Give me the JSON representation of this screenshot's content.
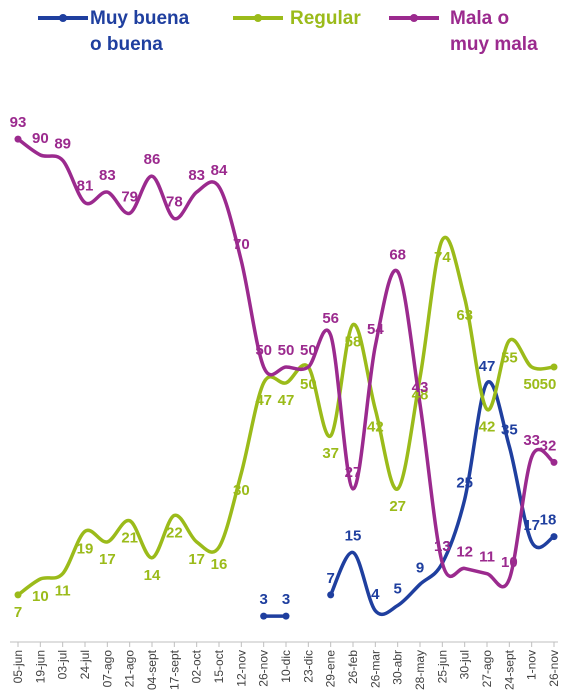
{
  "chart_data": {
    "type": "line",
    "title": "",
    "xlabel": "",
    "ylabel": "",
    "ylim": [
      0,
      100
    ],
    "grid": false,
    "legend_position": "top",
    "categories": [
      "05-jun",
      "19-jun",
      "03-jul",
      "24-jul",
      "07-ago",
      "21-ago",
      "04-sept",
      "17-sept",
      "02-oct",
      "15-oct",
      "12-nov",
      "26-nov",
      "10-dic",
      "23-dic",
      "29-ene",
      "26-feb",
      "26-mar",
      "30-abr",
      "28-may",
      "25-jun",
      "30-jul",
      "27-ago",
      "24-sept",
      "1-nov",
      "26-nov"
    ],
    "series": [
      {
        "name": "Muy buena o buena",
        "name_lines": [
          "Muy buena",
          "o buena"
        ],
        "color": "#1f3f9f",
        "values": [
          null,
          null,
          null,
          null,
          null,
          null,
          null,
          null,
          null,
          null,
          null,
          3,
          3,
          null,
          7,
          15,
          4,
          5,
          9,
          13,
          25,
          47,
          35,
          17,
          18
        ],
        "value_labels": [
          null,
          null,
          null,
          null,
          null,
          null,
          null,
          null,
          null,
          null,
          null,
          "3",
          "3",
          null,
          "7",
          "15",
          "4",
          "5",
          "9",
          "13",
          "25",
          "47",
          "35",
          "17",
          "18"
        ]
      },
      {
        "name": "Regular",
        "name_lines": [
          "Regular"
        ],
        "color": "#9bbb1a",
        "values": [
          7,
          10,
          11,
          19,
          17,
          21,
          14,
          22,
          17,
          16,
          30,
          47,
          47,
          50,
          37,
          58,
          42,
          27,
          48,
          74,
          63,
          42,
          55,
          50,
          50
        ],
        "value_labels": [
          "7",
          "10",
          "11",
          "19",
          "17",
          "21",
          "14",
          "22",
          "17",
          "16",
          "30",
          "47",
          "47",
          "50",
          "37",
          "58",
          "42",
          "27",
          "48",
          "74",
          "63",
          "42",
          "55",
          "50",
          "50"
        ]
      },
      {
        "name": "Mala o muy mala",
        "name_lines": [
          "Mala o",
          "muy mala"
        ],
        "color": "#9b2a8e",
        "values": [
          93,
          90,
          89,
          81,
          83,
          79,
          86,
          78,
          83,
          84,
          70,
          50,
          50,
          50,
          56,
          27,
          54,
          68,
          43,
          13,
          12,
          11,
          10,
          33,
          32
        ],
        "value_labels": [
          "93",
          "90",
          "89",
          "81",
          "83",
          "79",
          "86",
          "78",
          "83",
          "84",
          "70",
          "50",
          "50",
          "50",
          "56",
          "27",
          "54",
          "68",
          "43",
          "13",
          "12",
          "11",
          "10",
          "33",
          "32"
        ]
      }
    ]
  }
}
